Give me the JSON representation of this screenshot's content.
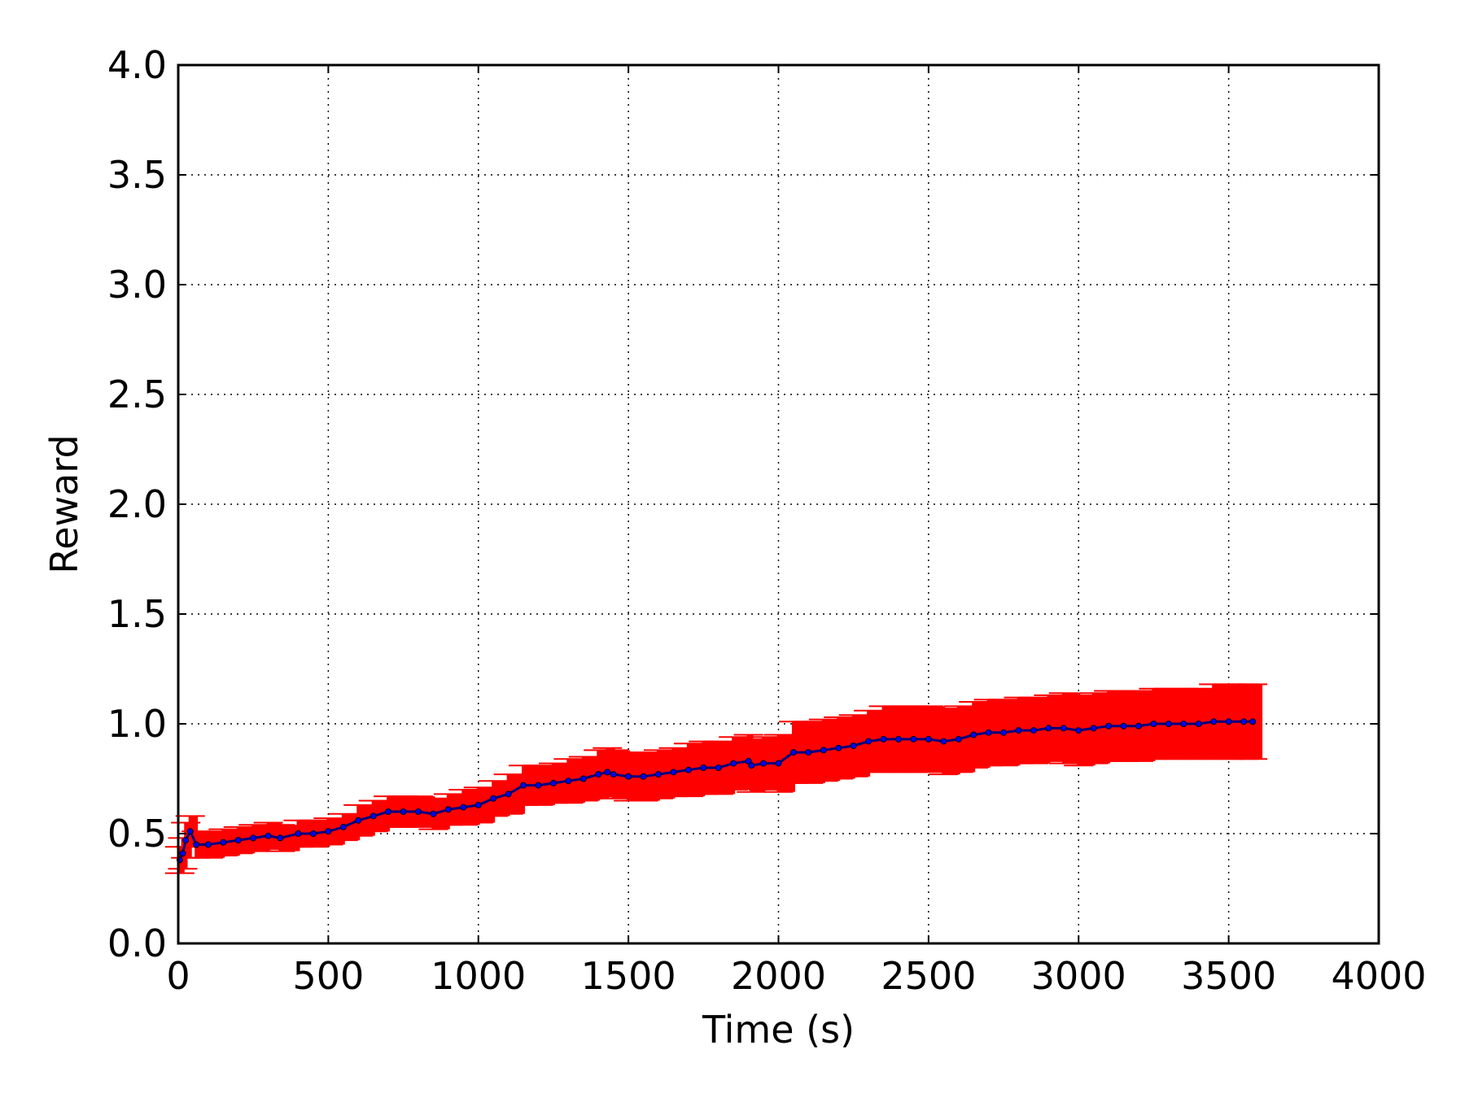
{
  "chart_data": {
    "type": "line",
    "title": "",
    "xlabel": "Time (s)",
    "ylabel": "Reward",
    "xlim": [
      0,
      4000
    ],
    "ylim": [
      0.0,
      4.0
    ],
    "xticks": [
      "0",
      "500",
      "1000",
      "1500",
      "2000",
      "2500",
      "3000",
      "3500",
      "4000"
    ],
    "yticks": [
      "0.0",
      "0.5",
      "1.0",
      "1.5",
      "2.0",
      "2.5",
      "3.0",
      "3.5",
      "4.0"
    ],
    "grid": true,
    "legend": "none",
    "colors": {
      "line": "#00007f",
      "marker": "#0000ff",
      "errorbar": "#ff0000",
      "grid": "#000000"
    },
    "series": [
      {
        "x": [
          5,
          15,
          25,
          40,
          60,
          100,
          150,
          200,
          250,
          300,
          340,
          400,
          450,
          500,
          550,
          600,
          650,
          700,
          750,
          800,
          850,
          900,
          950,
          1000,
          1050,
          1100,
          1150,
          1200,
          1250,
          1300,
          1350,
          1400,
          1430,
          1450,
          1500,
          1550,
          1600,
          1650,
          1700,
          1750,
          1800,
          1850,
          1900,
          1910,
          1950,
          2000,
          2050,
          2100,
          2150,
          2200,
          2250,
          2300,
          2350,
          2400,
          2450,
          2500,
          2550,
          2600,
          2650,
          2700,
          2750,
          2800,
          2850,
          2900,
          2950,
          3000,
          3050,
          3100,
          3150,
          3200,
          3250,
          3300,
          3350,
          3400,
          3450,
          3500,
          3550,
          3580
        ],
        "y": [
          0.38,
          0.41,
          0.47,
          0.51,
          0.45,
          0.45,
          0.46,
          0.47,
          0.48,
          0.49,
          0.48,
          0.5,
          0.5,
          0.51,
          0.53,
          0.56,
          0.58,
          0.6,
          0.6,
          0.6,
          0.59,
          0.61,
          0.62,
          0.63,
          0.66,
          0.68,
          0.72,
          0.72,
          0.73,
          0.74,
          0.75,
          0.77,
          0.78,
          0.77,
          0.76,
          0.76,
          0.77,
          0.78,
          0.79,
          0.8,
          0.8,
          0.82,
          0.83,
          0.81,
          0.82,
          0.82,
          0.87,
          0.87,
          0.88,
          0.89,
          0.9,
          0.92,
          0.93,
          0.93,
          0.93,
          0.93,
          0.92,
          0.93,
          0.95,
          0.96,
          0.96,
          0.97,
          0.97,
          0.98,
          0.98,
          0.97,
          0.98,
          0.99,
          0.99,
          0.99,
          1.0,
          1.0,
          1.0,
          1.0,
          1.01,
          1.01,
          1.01,
          1.01
        ],
        "err": [
          0.06,
          0.07,
          0.08,
          0.07,
          0.06,
          0.06,
          0.06,
          0.06,
          0.06,
          0.06,
          0.06,
          0.06,
          0.06,
          0.06,
          0.06,
          0.07,
          0.07,
          0.07,
          0.07,
          0.07,
          0.07,
          0.07,
          0.08,
          0.08,
          0.08,
          0.09,
          0.09,
          0.09,
          0.09,
          0.1,
          0.1,
          0.11,
          0.11,
          0.11,
          0.11,
          0.11,
          0.11,
          0.11,
          0.12,
          0.12,
          0.12,
          0.12,
          0.12,
          0.12,
          0.12,
          0.13,
          0.14,
          0.14,
          0.14,
          0.14,
          0.14,
          0.14,
          0.15,
          0.15,
          0.15,
          0.15,
          0.15,
          0.15,
          0.15,
          0.15,
          0.15,
          0.15,
          0.15,
          0.15,
          0.16,
          0.16,
          0.16,
          0.16,
          0.16,
          0.16,
          0.16,
          0.16,
          0.16,
          0.16,
          0.17,
          0.17,
          0.17,
          0.17
        ]
      }
    ]
  }
}
